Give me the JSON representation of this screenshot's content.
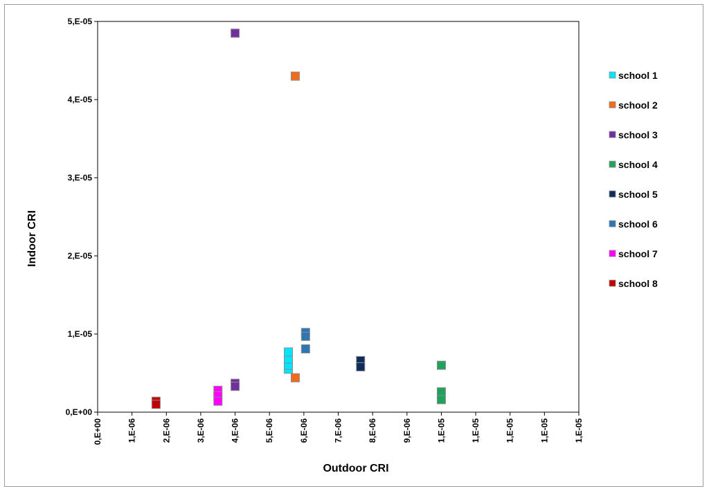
{
  "chart_data": {
    "type": "scatter",
    "title": "",
    "xlabel": "Outdoor CRI",
    "ylabel": "Indoor  CRI",
    "xlim": [
      0,
      1.4e-05
    ],
    "ylim": [
      0,
      5e-05
    ],
    "x_tick_labels": [
      "0,E+00",
      "1,E-06",
      "2,E-06",
      "3,E-06",
      "4,E-06",
      "5,E-06",
      "6,E-06",
      "7,E-06",
      "8,E-06",
      "9,E-06",
      "1,E-05",
      "1,E-05",
      "1,E-05",
      "1,E-05",
      "1,E-05"
    ],
    "y_tick_labels": [
      "0,E+00",
      "1,E-05",
      "2,E-05",
      "3,E-05",
      "4,E-05",
      "5,E-05"
    ],
    "grid": false,
    "legend_position": "right",
    "marker": "square",
    "series": [
      {
        "name": "school 1",
        "color": "#00e5ff",
        "x": [
          5.55e-06,
          5.55e-06,
          5.55e-06,
          5.55e-06
        ],
        "y": [
          5.5e-06,
          6e-06,
          6.8e-06,
          7.7e-06
        ]
      },
      {
        "name": "school 2",
        "color": "#f26a1b",
        "x": [
          5.75e-06,
          5.75e-06
        ],
        "y": [
          4.3e-05,
          4.4e-06
        ]
      },
      {
        "name": "school 3",
        "color": "#7030a0",
        "x": [
          4e-06,
          4e-06,
          4e-06
        ],
        "y": [
          4.85e-05,
          3.7e-06,
          3.3e-06
        ]
      },
      {
        "name": "school 4",
        "color": "#1fa35b",
        "x": [
          1e-05,
          1e-05,
          1e-05
        ],
        "y": [
          6e-06,
          2.6e-06,
          1.6e-06
        ]
      },
      {
        "name": "school 5",
        "color": "#0f2d5c",
        "x": [
          7.65e-06,
          7.65e-06
        ],
        "y": [
          6.6e-06,
          5.8e-06
        ]
      },
      {
        "name": "school 6",
        "color": "#2e75b6",
        "x": [
          6.05e-06,
          6.05e-06,
          6.05e-06
        ],
        "y": [
          1.02e-05,
          9.7e-06,
          8.1e-06
        ]
      },
      {
        "name": "school 7",
        "color": "#ff00ff",
        "x": [
          3.5e-06,
          3.5e-06,
          3.5e-06
        ],
        "y": [
          2.8e-06,
          2.1e-06,
          1.4e-06
        ]
      },
      {
        "name": "school 8",
        "color": "#c00000",
        "x": [
          1.7e-06,
          1.7e-06
        ],
        "y": [
          1.4e-06,
          1e-06
        ]
      }
    ]
  }
}
